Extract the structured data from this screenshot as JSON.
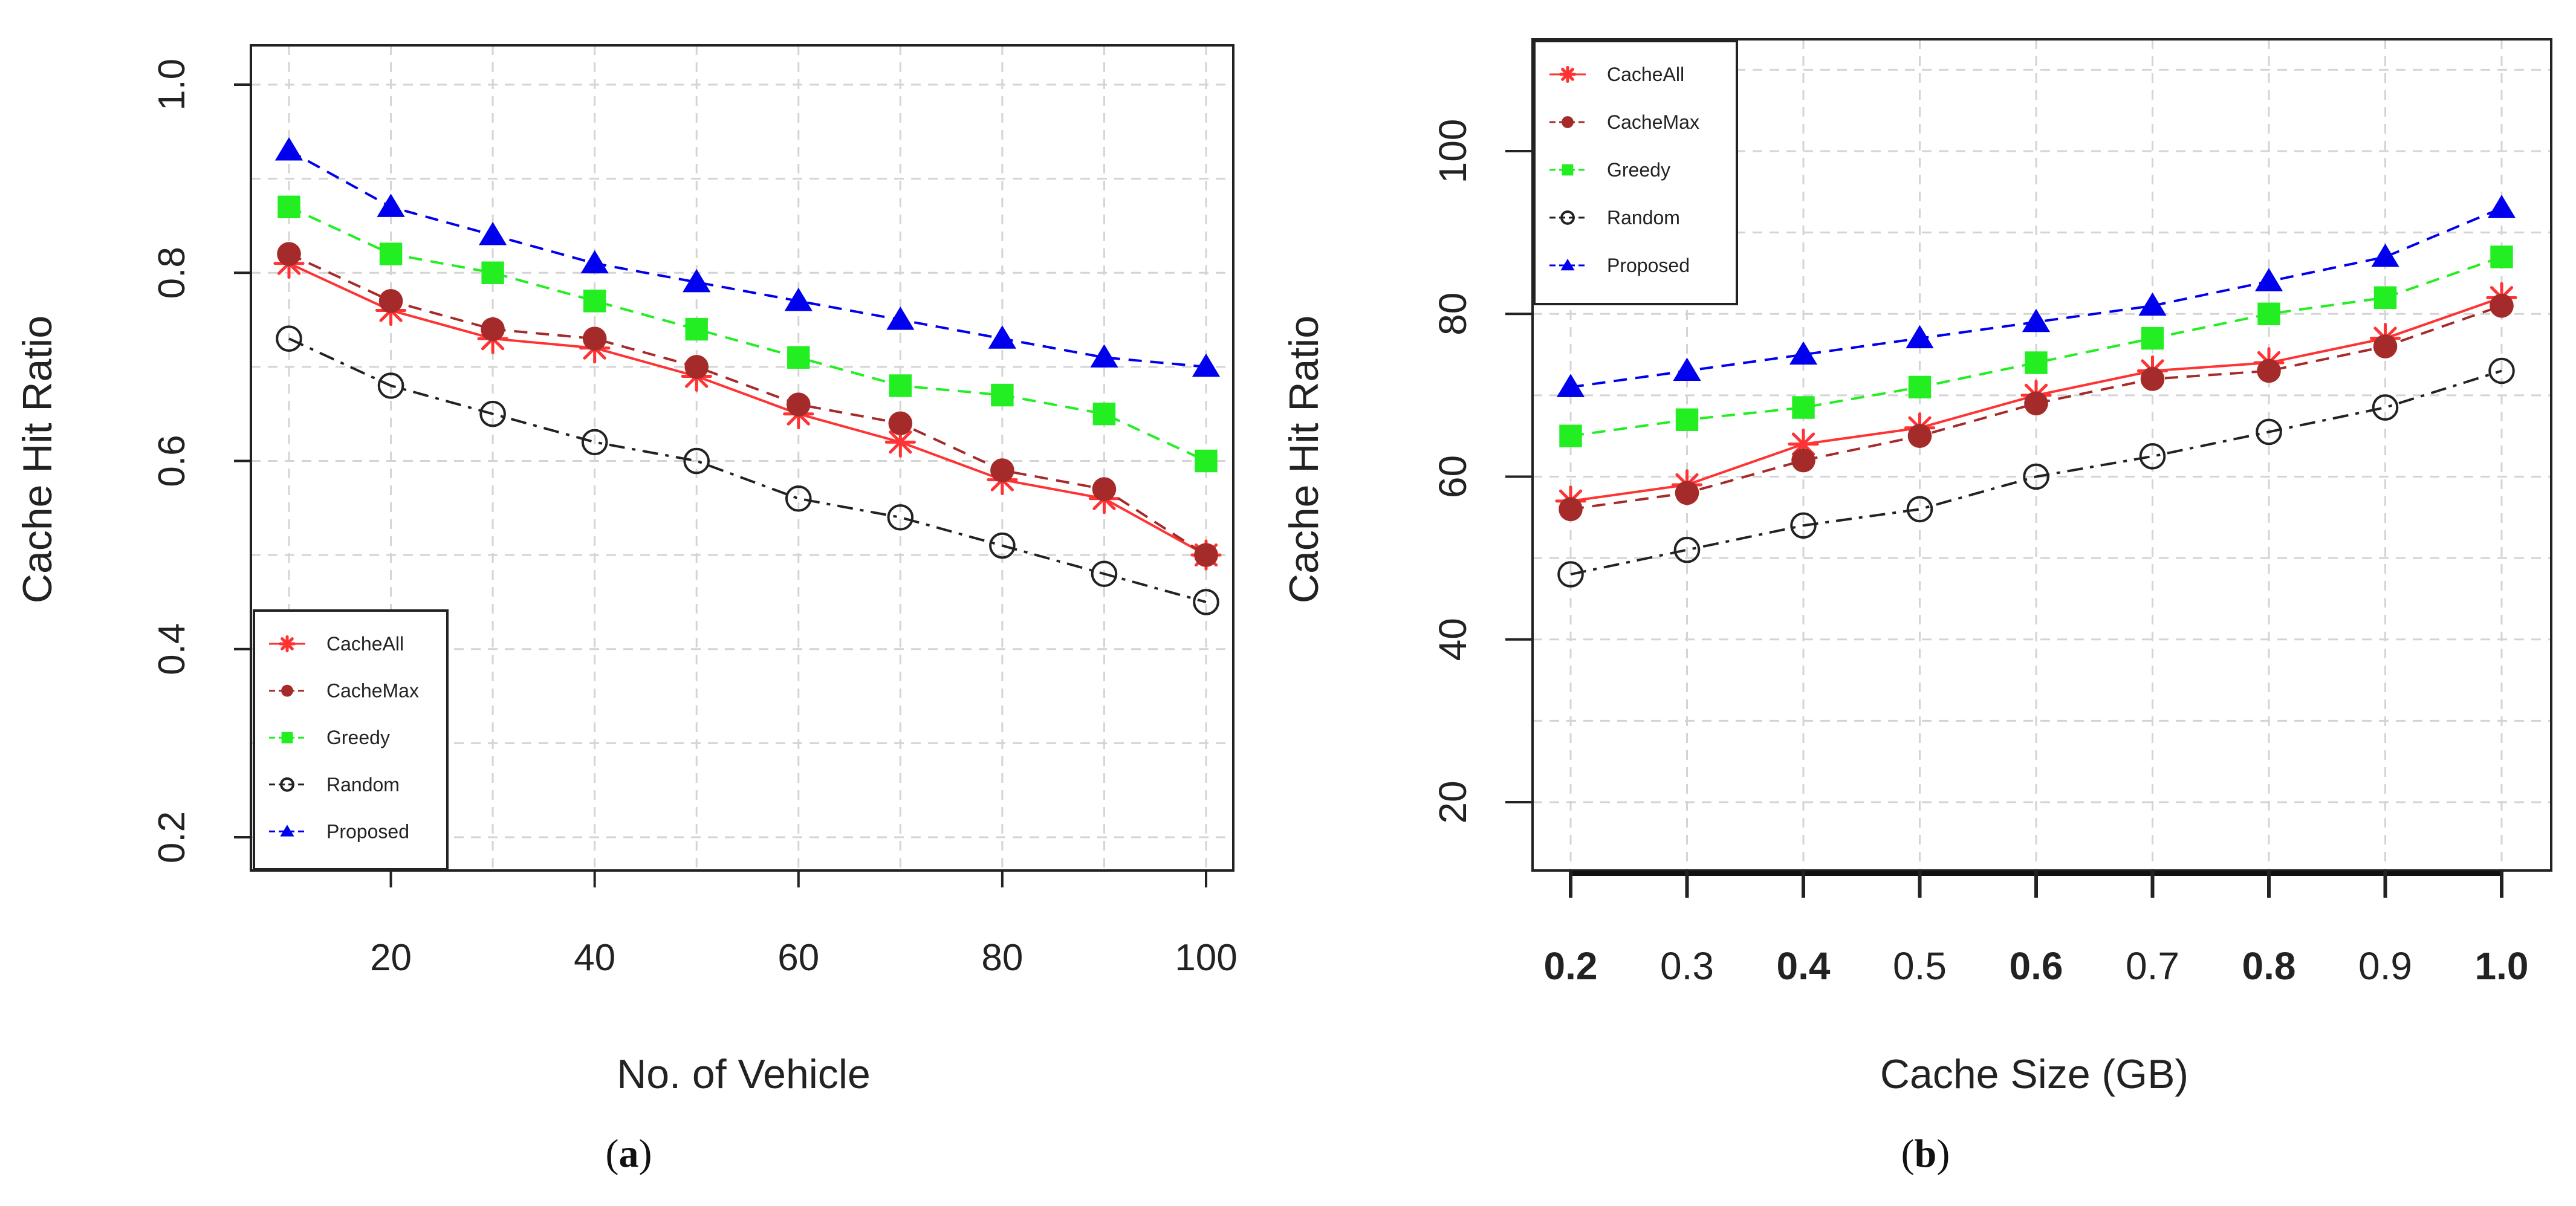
{
  "chart_data": [
    {
      "type": "line",
      "panel_label": "(a)",
      "caption_letter": "a",
      "xlabel": "No. of Vehicle",
      "ylabel": "Cache Hit Ratio",
      "xlim": [
        10,
        100
      ],
      "ylim": [
        0.2,
        1.0
      ],
      "xticks": [
        20,
        40,
        60,
        80,
        100
      ],
      "xtick_labels": [
        "20",
        "40",
        "60",
        "80",
        "100"
      ],
      "yticks": [
        0.2,
        0.4,
        0.6,
        0.8,
        1.0
      ],
      "ytick_labels": [
        "0.2",
        "0.4",
        "0.6",
        "0.8",
        "1.0"
      ],
      "legend_position": "bottom-left",
      "grid": true,
      "x": [
        10,
        20,
        30,
        40,
        50,
        60,
        70,
        80,
        90,
        100
      ],
      "series": [
        {
          "name": "CacheAll",
          "color": "#ff3333",
          "marker": "asterisk",
          "dash": "solid",
          "values": [
            0.81,
            0.76,
            0.73,
            0.72,
            0.69,
            0.65,
            0.62,
            0.58,
            0.56,
            0.5
          ]
        },
        {
          "name": "CacheMax",
          "color": "#a52a2a",
          "marker": "filled-circle",
          "dash": "dashed",
          "values": [
            0.82,
            0.77,
            0.74,
            0.73,
            0.7,
            0.66,
            0.64,
            0.59,
            0.57,
            0.5
          ]
        },
        {
          "name": "Greedy",
          "color": "#22ee22",
          "marker": "filled-square",
          "dash": "dashed",
          "values": [
            0.87,
            0.82,
            0.8,
            0.77,
            0.74,
            0.71,
            0.68,
            0.67,
            0.65,
            0.6
          ]
        },
        {
          "name": "Random",
          "color": "#222222",
          "marker": "open-circle",
          "dash": "dashdot",
          "values": [
            0.73,
            0.68,
            0.65,
            0.62,
            0.6,
            0.56,
            0.54,
            0.51,
            0.48,
            0.45
          ]
        },
        {
          "name": "Proposed",
          "color": "#0000ee",
          "marker": "filled-triangle",
          "dash": "dashed",
          "values": [
            0.93,
            0.87,
            0.84,
            0.81,
            0.79,
            0.77,
            0.75,
            0.73,
            0.71,
            0.7
          ]
        }
      ]
    },
    {
      "type": "line",
      "panel_label": "(b)",
      "caption_letter": "b",
      "xlabel": "Cache Size (GB)",
      "ylabel": "Cache Hit Ratio",
      "xlim": [
        0.2,
        1.0
      ],
      "ylim": [
        10,
        115
      ],
      "xticks": [
        0.2,
        0.3,
        0.4,
        0.5,
        0.6,
        0.7,
        0.8,
        0.9,
        1.0
      ],
      "xtick_labels": [
        "0.2",
        "0.3",
        "0.4",
        "0.5",
        "0.6",
        "0.7",
        "0.8",
        "0.9",
        "1.0"
      ],
      "yticks": [
        20,
        40,
        60,
        80,
        100
      ],
      "ytick_labels": [
        "20",
        "40",
        "60",
        "80",
        "100"
      ],
      "legend_position": "top-left",
      "grid": true,
      "x": [
        0.2,
        0.3,
        0.4,
        0.5,
        0.6,
        0.7,
        0.8,
        0.9,
        1.0
      ],
      "series": [
        {
          "name": "CacheAll",
          "color": "#ff3333",
          "marker": "asterisk",
          "dash": "solid",
          "values": [
            57,
            59,
            64,
            66,
            70,
            73,
            74,
            77,
            82
          ]
        },
        {
          "name": "CacheMax",
          "color": "#a52a2a",
          "marker": "filled-circle",
          "dash": "dashed",
          "values": [
            56,
            58,
            62,
            65,
            69,
            72,
            73,
            76,
            81
          ]
        },
        {
          "name": "Greedy",
          "color": "#22ee22",
          "marker": "filled-square",
          "dash": "dashed",
          "values": [
            65,
            67,
            68.5,
            71,
            74,
            77,
            80,
            82,
            87
          ]
        },
        {
          "name": "Random",
          "color": "#222222",
          "marker": "open-circle",
          "dash": "dashdot",
          "values": [
            48,
            51,
            54,
            56,
            60,
            62.5,
            65.5,
            68.5,
            73
          ]
        },
        {
          "name": "Proposed",
          "color": "#0000ee",
          "marker": "filled-triangle",
          "dash": "dashed",
          "values": [
            71,
            73,
            75,
            77,
            79,
            81,
            84,
            87,
            93
          ]
        }
      ]
    }
  ]
}
